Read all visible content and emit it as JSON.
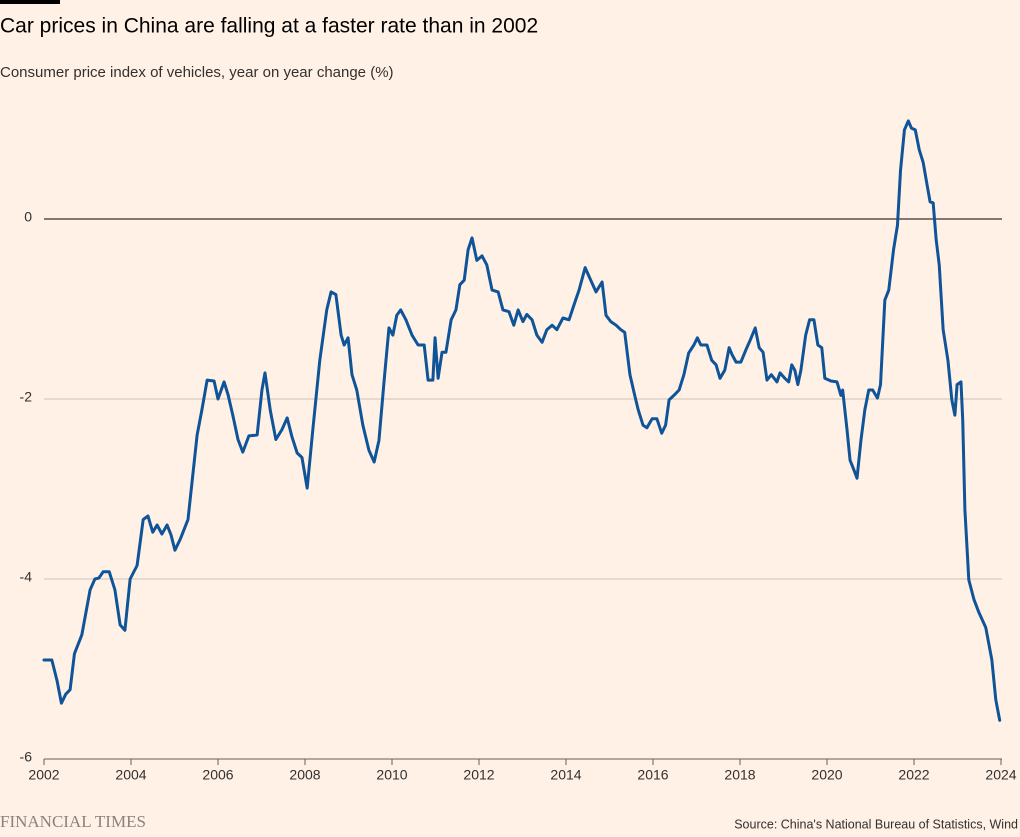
{
  "chart_data": {
    "type": "line",
    "title": "Car prices in China are falling at a faster rate than in 2002",
    "subtitle": "Consumer price index of vehicles, year on year change (%)",
    "source": "Source: China's National Bureau of Statistics, Wind",
    "brand": "FINANCIAL TIMES",
    "color": "#0f5499",
    "xlim": [
      2002,
      2024
    ],
    "xticks": [
      2002,
      2004,
      2006,
      2008,
      2010,
      2012,
      2014,
      2016,
      2018,
      2020,
      2022,
      2024
    ],
    "ylim": [
      -6,
      1.2
    ],
    "yticks": [
      0,
      -2,
      -4,
      -6
    ],
    "grid": true,
    "x": [
      2002.0,
      2002.18,
      2002.3,
      2002.4,
      2002.5,
      2002.6,
      2002.7,
      2002.87,
      2003.06,
      2003.17,
      2003.26,
      2003.36,
      2003.5,
      2003.63,
      2003.75,
      2003.86,
      2003.98,
      2004.14,
      2004.28,
      2004.39,
      2004.5,
      2004.6,
      2004.71,
      2004.83,
      2004.92,
      2005.01,
      2005.13,
      2005.31,
      2005.52,
      2005.63,
      2005.75,
      2005.91,
      2006.0,
      2006.14,
      2006.23,
      2006.34,
      2006.46,
      2006.57,
      2006.71,
      2006.9,
      2007.01,
      2007.08,
      2007.2,
      2007.33,
      2007.47,
      2007.59,
      2007.7,
      2007.82,
      2007.93,
      2008.05,
      2008.18,
      2008.34,
      2008.5,
      2008.6,
      2008.71,
      2008.83,
      2008.9,
      2008.99,
      2009.08,
      2009.19,
      2009.33,
      2009.47,
      2009.59,
      2009.7,
      2009.82,
      2009.93,
      2010.02,
      2010.11,
      2010.2,
      2010.32,
      2010.46,
      2010.6,
      2010.74,
      2010.83,
      2010.94,
      2010.99,
      2011.06,
      2011.15,
      2011.24,
      2011.36,
      2011.47,
      2011.56,
      2011.66,
      2011.75,
      2011.84,
      2011.95,
      2012.07,
      2012.18,
      2012.3,
      2012.44,
      2012.55,
      2012.69,
      2012.8,
      2012.9,
      2013.01,
      2013.1,
      2013.22,
      2013.33,
      2013.45,
      2013.56,
      2013.68,
      2013.79,
      2013.93,
      2014.07,
      2014.18,
      2014.3,
      2014.44,
      2014.55,
      2014.69,
      2014.83,
      2014.92,
      2015.03,
      2015.15,
      2015.26,
      2015.35,
      2015.47,
      2015.58,
      2015.66,
      2015.77,
      2015.86,
      2015.98,
      2016.09,
      2016.2,
      2016.29,
      2016.37,
      2016.48,
      2016.6,
      2016.71,
      2016.82,
      2016.94,
      2017.02,
      2017.1,
      2017.24,
      2017.35,
      2017.45,
      2017.54,
      2017.65,
      2017.75,
      2017.82,
      2017.91,
      2018.02,
      2018.13,
      2018.24,
      2018.35,
      2018.44,
      2018.53,
      2018.62,
      2018.72,
      2018.85,
      2018.92,
      2019.03,
      2019.12,
      2019.19,
      2019.26,
      2019.33,
      2019.4,
      2019.51,
      2019.6,
      2019.7,
      2019.79,
      2019.88,
      2019.95,
      2020.09,
      2020.23,
      2020.32,
      2020.36,
      2020.46,
      2020.53,
      2020.62,
      2020.69,
      2020.78,
      2020.87,
      2020.96,
      2021.05,
      2021.16,
      2021.23,
      2021.33,
      2021.42,
      2021.53,
      2021.62,
      2021.69,
      2021.78,
      2021.87,
      2021.94,
      2022.03,
      2022.12,
      2022.21,
      2022.3,
      2022.37,
      2022.44,
      2022.51,
      2022.58,
      2022.67,
      2022.78,
      2022.87,
      2022.94,
      2022.99,
      2023.08,
      2023.12,
      2023.17,
      2023.26,
      2023.38,
      2023.49,
      2023.65,
      2023.79,
      2023.88,
      2023.97
    ],
    "values": [
      -4.9,
      -4.9,
      -5.13,
      -5.38,
      -5.28,
      -5.23,
      -4.83,
      -4.62,
      -4.12,
      -4.0,
      -3.99,
      -3.92,
      -3.92,
      -4.12,
      -4.51,
      -4.57,
      -4.0,
      -3.85,
      -3.34,
      -3.3,
      -3.48,
      -3.4,
      -3.5,
      -3.4,
      -3.51,
      -3.68,
      -3.56,
      -3.34,
      -2.4,
      -2.12,
      -1.79,
      -1.8,
      -2.0,
      -1.81,
      -1.95,
      -2.18,
      -2.45,
      -2.59,
      -2.41,
      -2.4,
      -1.9,
      -1.71,
      -2.12,
      -2.45,
      -2.34,
      -2.21,
      -2.42,
      -2.6,
      -2.65,
      -2.99,
      -2.34,
      -1.57,
      -1.01,
      -0.81,
      -0.84,
      -1.29,
      -1.4,
      -1.32,
      -1.73,
      -1.9,
      -2.29,
      -2.57,
      -2.7,
      -2.46,
      -1.79,
      -1.21,
      -1.29,
      -1.07,
      -1.01,
      -1.12,
      -1.29,
      -1.4,
      -1.4,
      -1.79,
      -1.79,
      -1.32,
      -1.77,
      -1.48,
      -1.48,
      -1.12,
      -1.01,
      -0.73,
      -0.68,
      -0.34,
      -0.21,
      -0.46,
      -0.41,
      -0.51,
      -0.79,
      -0.81,
      -1.01,
      -1.03,
      -1.18,
      -1.01,
      -1.14,
      -1.06,
      -1.12,
      -1.29,
      -1.37,
      -1.23,
      -1.18,
      -1.23,
      -1.1,
      -1.12,
      -0.96,
      -0.79,
      -0.54,
      -0.66,
      -0.81,
      -0.7,
      -1.07,
      -1.14,
      -1.18,
      -1.23,
      -1.26,
      -1.73,
      -1.96,
      -2.12,
      -2.29,
      -2.32,
      -2.22,
      -2.22,
      -2.38,
      -2.29,
      -2.01,
      -1.96,
      -1.9,
      -1.73,
      -1.49,
      -1.4,
      -1.32,
      -1.4,
      -1.4,
      -1.57,
      -1.62,
      -1.77,
      -1.68,
      -1.43,
      -1.51,
      -1.59,
      -1.59,
      -1.46,
      -1.34,
      -1.21,
      -1.43,
      -1.48,
      -1.79,
      -1.73,
      -1.81,
      -1.71,
      -1.77,
      -1.81,
      -1.62,
      -1.68,
      -1.84,
      -1.68,
      -1.29,
      -1.12,
      -1.12,
      -1.4,
      -1.43,
      -1.77,
      -1.8,
      -1.81,
      -1.96,
      -1.9,
      -2.34,
      -2.68,
      -2.79,
      -2.88,
      -2.46,
      -2.12,
      -1.9,
      -1.9,
      -1.99,
      -1.84,
      -0.9,
      -0.79,
      -0.34,
      -0.07,
      0.54,
      0.99,
      1.09,
      1.01,
      0.99,
      0.77,
      0.63,
      0.38,
      0.19,
      0.18,
      -0.23,
      -0.51,
      -1.23,
      -1.57,
      -2.01,
      -2.18,
      -1.84,
      -1.81,
      -2.23,
      -3.23,
      -4.01,
      -4.23,
      -4.37,
      -4.54,
      -4.9,
      -5.34,
      -5.57
    ]
  }
}
